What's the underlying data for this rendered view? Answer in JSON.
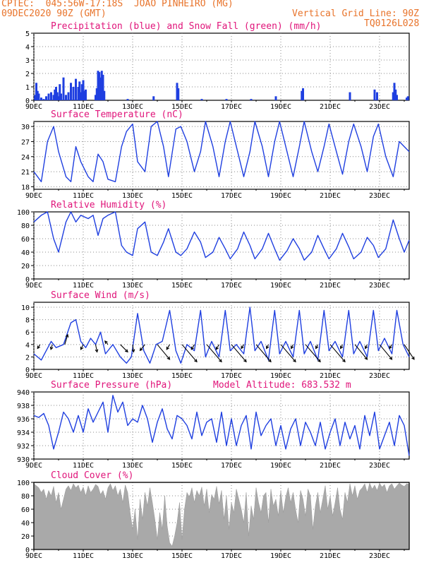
{
  "header": {
    "line1": "CPTEC:  045:56W-17:18S  JOAO PINHEIRO (MG)",
    "line2": "09DEC2020 90Z (GMT)",
    "grid_note": "Vertical Grid Line: 90Z",
    "code": "TQ0126L028"
  },
  "colors": {
    "header": "#e8732a",
    "title": "#e0147a",
    "series": "#1f3fe0",
    "snow": "#22b422",
    "wind_arrow": "#000000",
    "cloud": "#a9a9a9"
  },
  "chart_data": [
    {
      "id": "precip",
      "type": "bar",
      "title": "Precipitation (blue) and Snow Fall (green) (mm/h)",
      "x_labels": [
        "9DEC",
        "11DEC",
        "13DEC",
        "15DEC",
        "17DEC",
        "19DEC",
        "21DEC",
        "23DEC"
      ],
      "x_range_days": [
        9,
        24.2
      ],
      "ylim": [
        0,
        5
      ],
      "yticks": [
        0,
        1,
        2,
        3,
        4,
        5
      ],
      "grid": true,
      "series": [
        {
          "name": "Precipitation",
          "x": [
            9.05,
            9.1,
            9.15,
            9.2,
            9.3,
            9.4,
            9.5,
            9.6,
            9.7,
            9.8,
            9.85,
            9.9,
            9.95,
            10.0,
            10.05,
            10.1,
            10.2,
            10.3,
            10.4,
            10.5,
            10.6,
            10.7,
            10.8,
            10.85,
            10.9,
            10.95,
            11.0,
            11.05,
            11.1,
            11.5,
            11.55,
            11.6,
            11.65,
            11.7,
            11.75,
            11.8,
            11.85,
            12.8,
            13.85,
            14.8,
            14.85,
            15.8,
            16.8,
            17.8,
            18.8,
            19.85,
            19.9,
            21.8,
            22.8,
            22.9,
            23.55,
            23.6,
            23.65,
            23.7,
            24.1,
            24.15
          ],
          "values": [
            0.4,
            1.3,
            0.7,
            0.5,
            0.2,
            0.1,
            0.3,
            0.5,
            0.6,
            0.4,
            0.8,
            1.0,
            0.6,
            0.3,
            1.2,
            0.5,
            1.7,
            0.4,
            0.6,
            1.3,
            1.0,
            1.6,
            1.0,
            1.4,
            0.6,
            1.2,
            1.5,
            0.7,
            0.8,
            0.4,
            0.9,
            2.2,
            2.1,
            1.7,
            2.2,
            1.9,
            0.7,
            0.1,
            0.3,
            1.3,
            0.9,
            0.1,
            0.1,
            0.1,
            0.3,
            0.7,
            0.9,
            0.6,
            0.8,
            0.6,
            0.6,
            1.3,
            0.8,
            0.4,
            0.2,
            0.3
          ]
        },
        {
          "name": "Snow Fall",
          "x": [],
          "values": []
        }
      ]
    },
    {
      "id": "temp",
      "type": "line",
      "title": "Surface Temperature (nC)",
      "x_labels": [
        "9DEC",
        "11DEC",
        "13DEC",
        "15DEC",
        "17DEC",
        "19DEC",
        "21DEC",
        "23DEC"
      ],
      "x_range_days": [
        9,
        24.2
      ],
      "ylim": [
        17.5,
        31
      ],
      "yticks": [
        18,
        21,
        24,
        27,
        30
      ],
      "grid": true,
      "x": [
        9.0,
        9.3,
        9.55,
        9.8,
        10.0,
        10.3,
        10.5,
        10.7,
        10.9,
        11.2,
        11.4,
        11.6,
        11.8,
        12.0,
        12.3,
        12.55,
        12.75,
        13.0,
        13.2,
        13.5,
        13.75,
        14.0,
        14.25,
        14.45,
        14.75,
        14.95,
        15.2,
        15.5,
        15.75,
        15.95,
        16.25,
        16.5,
        16.75,
        16.95,
        17.25,
        17.5,
        17.75,
        17.95,
        18.25,
        18.5,
        18.75,
        18.95,
        19.25,
        19.5,
        19.75,
        19.95,
        20.25,
        20.5,
        20.75,
        20.95,
        21.25,
        21.5,
        21.75,
        21.95,
        22.25,
        22.5,
        22.75,
        22.95,
        23.25,
        23.55,
        23.8,
        24.0,
        24.2
      ],
      "values": [
        21,
        19,
        27,
        30,
        25,
        20,
        19,
        26,
        23,
        20,
        19,
        24.5,
        23,
        19.5,
        19,
        26,
        29,
        30.5,
        23,
        21,
        30,
        31,
        26,
        20,
        29.5,
        30,
        27,
        21,
        25,
        31,
        26,
        20,
        27,
        31,
        25,
        20,
        25,
        31,
        26,
        20,
        27,
        31,
        25,
        20,
        26,
        31,
        25,
        21,
        26,
        30.5,
        25,
        20.5,
        27,
        30.5,
        26,
        21,
        28,
        30.5,
        24,
        20,
        27,
        26,
        25
      ]
    },
    {
      "id": "rh",
      "type": "line",
      "title": "Relative Humidity (%)",
      "x_labels": [
        "9DEC",
        "11DEC",
        "13DEC",
        "15DEC",
        "17DEC",
        "19DEC",
        "21DEC",
        "23DEC"
      ],
      "x_range_days": [
        9,
        24.2
      ],
      "ylim": [
        0,
        100
      ],
      "yticks": [
        0,
        20,
        40,
        60,
        80,
        100
      ],
      "grid": true,
      "x": [
        9.0,
        9.3,
        9.55,
        9.8,
        10.0,
        10.3,
        10.5,
        10.7,
        10.9,
        11.2,
        11.4,
        11.6,
        11.8,
        12.0,
        12.3,
        12.55,
        12.75,
        13.0,
        13.2,
        13.5,
        13.75,
        14.0,
        14.25,
        14.45,
        14.75,
        14.95,
        15.2,
        15.5,
        15.75,
        15.95,
        16.25,
        16.5,
        16.75,
        16.95,
        17.25,
        17.5,
        17.75,
        17.95,
        18.25,
        18.5,
        18.75,
        18.95,
        19.25,
        19.5,
        19.75,
        19.95,
        20.25,
        20.5,
        20.75,
        20.95,
        21.25,
        21.5,
        21.75,
        21.95,
        22.25,
        22.5,
        22.75,
        22.95,
        23.25,
        23.55,
        23.8,
        24.0,
        24.2
      ],
      "values": [
        85,
        95,
        100,
        60,
        40,
        85,
        100,
        85,
        95,
        90,
        95,
        65,
        90,
        95,
        100,
        50,
        40,
        35,
        75,
        85,
        40,
        35,
        55,
        75,
        40,
        35,
        45,
        70,
        55,
        32,
        40,
        62,
        45,
        30,
        45,
        70,
        50,
        30,
        45,
        68,
        45,
        28,
        42,
        60,
        45,
        28,
        40,
        65,
        45,
        30,
        45,
        68,
        48,
        30,
        40,
        62,
        50,
        32,
        45,
        88,
        60,
        40,
        58
      ]
    },
    {
      "id": "wind",
      "type": "line",
      "title": "Surface Wind (m/s)",
      "x_labels": [
        "9DEC",
        "11DEC",
        "13DEC",
        "15DEC",
        "17DEC",
        "19DEC",
        "21DEC",
        "23DEC"
      ],
      "x_range_days": [
        9,
        24.2
      ],
      "ylim": [
        0,
        10.8
      ],
      "yticks": [
        0,
        2,
        4,
        6,
        8,
        10
      ],
      "grid": true,
      "x": [
        9.0,
        9.3,
        9.5,
        9.7,
        9.9,
        10.2,
        10.5,
        10.7,
        10.9,
        11.1,
        11.3,
        11.5,
        11.7,
        11.9,
        12.2,
        12.5,
        12.75,
        12.95,
        13.2,
        13.45,
        13.7,
        13.95,
        14.2,
        14.5,
        14.75,
        14.95,
        15.2,
        15.5,
        15.75,
        15.95,
        16.2,
        16.5,
        16.75,
        16.95,
        17.2,
        17.5,
        17.75,
        17.95,
        18.2,
        18.5,
        18.75,
        18.95,
        19.2,
        19.5,
        19.75,
        19.95,
        20.2,
        20.5,
        20.75,
        20.95,
        21.2,
        21.5,
        21.75,
        21.95,
        22.2,
        22.5,
        22.75,
        22.95,
        23.2,
        23.5,
        23.7,
        23.95,
        24.2
      ],
      "values": [
        2.5,
        1.5,
        3,
        4.5,
        3.5,
        4,
        7.5,
        8,
        4.5,
        3.5,
        5,
        4,
        6,
        2.5,
        4,
        2,
        1,
        2,
        9,
        3,
        1,
        4,
        4.5,
        9.5,
        3,
        1,
        4,
        3,
        9.5,
        2,
        4.5,
        2,
        9.5,
        3,
        4,
        2.5,
        10,
        3,
        4.5,
        1.5,
        9.5,
        2.5,
        4.5,
        2,
        9.5,
        2.5,
        4.5,
        1.5,
        9.5,
        3,
        4.5,
        2,
        9.5,
        2.5,
        4.5,
        2,
        9.5,
        3,
        5,
        2.5,
        9.5,
        4,
        2
      ],
      "arrows": {
        "x": [
          9.25,
          9.75,
          10.25,
          11.0,
          11.5,
          12.0,
          12.5,
          13.0,
          13.5,
          14.0,
          14.5,
          15.0,
          15.5,
          16.0,
          16.5,
          17.0,
          17.5,
          18.0,
          18.5,
          19.0,
          19.5,
          20.0,
          20.5,
          21.0,
          21.5,
          22.0,
          22.5,
          23.0,
          23.5,
          24.0
        ],
        "u": [
          -0.5,
          -0.3,
          0.6,
          -0.5,
          0.3,
          -0.6,
          1.5,
          0.2,
          -1.0,
          2.5,
          -0.6,
          3.0,
          -0.6,
          3.0,
          -0.6,
          3.0,
          -0.5,
          3.0,
          -0.4,
          3.0,
          -0.4,
          3.0,
          -0.4,
          3.0,
          -0.4,
          2.5,
          -0.4,
          2.5,
          -0.5,
          2.0
        ],
        "v": [
          0.8,
          1.0,
          -2.0,
          1.0,
          1.5,
          -0.7,
          1.5,
          1.5,
          1.2,
          3.0,
          1.0,
          3.5,
          1.0,
          3.5,
          1.0,
          3.5,
          0.8,
          3.5,
          0.8,
          3.5,
          0.8,
          3.5,
          0.8,
          3.5,
          0.8,
          3.0,
          0.8,
          3.0,
          0.8,
          3.0
        ]
      }
    },
    {
      "id": "pressure",
      "type": "line",
      "title": "Surface Pressure (hPa)",
      "annotation": "Model Altitude: 683.532 m",
      "x_labels": [
        "9DEC",
        "11DEC",
        "13DEC",
        "15DEC",
        "17DEC",
        "19DEC",
        "21DEC",
        "23DEC"
      ],
      "x_range_days": [
        9,
        24.2
      ],
      "ylim": [
        930,
        940
      ],
      "yticks": [
        930,
        932,
        934,
        936,
        938,
        940
      ],
      "grid": true,
      "x": [
        9.0,
        9.2,
        9.4,
        9.6,
        9.8,
        10.0,
        10.2,
        10.4,
        10.6,
        10.8,
        11.0,
        11.2,
        11.4,
        11.6,
        11.8,
        12.0,
        12.2,
        12.4,
        12.6,
        12.8,
        13.0,
        13.2,
        13.4,
        13.6,
        13.8,
        14.0,
        14.2,
        14.4,
        14.6,
        14.8,
        15.0,
        15.2,
        15.4,
        15.6,
        15.8,
        16.0,
        16.2,
        16.4,
        16.6,
        16.8,
        17.0,
        17.2,
        17.4,
        17.6,
        17.8,
        18.0,
        18.2,
        18.4,
        18.6,
        18.8,
        19.0,
        19.2,
        19.4,
        19.6,
        19.8,
        20.0,
        20.2,
        20.4,
        20.6,
        20.8,
        21.0,
        21.2,
        21.4,
        21.6,
        21.8,
        22.0,
        22.2,
        22.4,
        22.6,
        22.8,
        23.0,
        23.2,
        23.4,
        23.6,
        23.8,
        24.0,
        24.2
      ],
      "values": [
        936.5,
        936.2,
        936.8,
        935,
        931.5,
        934,
        937,
        936,
        934,
        936.5,
        934,
        937.5,
        935.5,
        937,
        938.5,
        934,
        939.5,
        937,
        938.5,
        935,
        936,
        935.5,
        938,
        936,
        932.5,
        935.5,
        937.5,
        934.5,
        933,
        936.5,
        936,
        935,
        933,
        937,
        933.5,
        935.5,
        936,
        932.5,
        937,
        932,
        936,
        932,
        935,
        936.5,
        931.5,
        937,
        933.5,
        935,
        936,
        932,
        935,
        931.5,
        934.5,
        936,
        932,
        935.5,
        934,
        932,
        935.5,
        931.5,
        934,
        936,
        932,
        935.5,
        933,
        935,
        931.5,
        936.5,
        933.5,
        937,
        931.5,
        933.5,
        935.5,
        932,
        936.5,
        935,
        930.5
      ]
    },
    {
      "id": "cloud",
      "type": "area",
      "title": "Cloud Cover (%)",
      "x_labels": [
        "9DEC",
        "11DEC",
        "13DEC",
        "15DEC",
        "17DEC",
        "19DEC",
        "21DEC",
        "23DEC"
      ],
      "x_range_days": [
        9,
        24.2
      ],
      "ylim": [
        0,
        100
      ],
      "yticks": [
        0,
        20,
        40,
        60,
        80,
        100
      ],
      "grid": true,
      "x": [
        9.0,
        9.1,
        9.2,
        9.3,
        9.4,
        9.5,
        9.6,
        9.7,
        9.8,
        9.9,
        10.0,
        10.1,
        10.2,
        10.3,
        10.4,
        10.5,
        10.6,
        10.7,
        10.8,
        10.9,
        11.0,
        11.1,
        11.2,
        11.3,
        11.4,
        11.5,
        11.6,
        11.7,
        11.8,
        11.9,
        12.0,
        12.1,
        12.2,
        12.3,
        12.4,
        12.5,
        12.6,
        12.7,
        12.8,
        12.9,
        13.0,
        13.1,
        13.2,
        13.3,
        13.4,
        13.5,
        13.6,
        13.7,
        13.8,
        13.9,
        14.0,
        14.1,
        14.2,
        14.3,
        14.4,
        14.5,
        14.6,
        14.7,
        14.8,
        14.9,
        15.0,
        15.1,
        15.2,
        15.3,
        15.4,
        15.5,
        15.6,
        15.7,
        15.8,
        15.9,
        16.0,
        16.1,
        16.2,
        16.3,
        16.4,
        16.5,
        16.6,
        16.7,
        16.8,
        16.9,
        17.0,
        17.1,
        17.2,
        17.3,
        17.4,
        17.5,
        17.6,
        17.7,
        17.8,
        17.9,
        18.0,
        18.1,
        18.2,
        18.3,
        18.4,
        18.5,
        18.6,
        18.7,
        18.8,
        18.9,
        19.0,
        19.1,
        19.2,
        19.3,
        19.4,
        19.5,
        19.6,
        19.7,
        19.8,
        19.9,
        20.0,
        20.1,
        20.2,
        20.3,
        20.4,
        20.5,
        20.6,
        20.7,
        20.8,
        20.9,
        21.0,
        21.1,
        21.2,
        21.3,
        21.4,
        21.5,
        21.6,
        21.7,
        21.8,
        21.9,
        22.0,
        22.1,
        22.2,
        22.3,
        22.4,
        22.5,
        22.6,
        22.7,
        22.8,
        22.9,
        23.0,
        23.1,
        23.2,
        23.3,
        23.4,
        23.5,
        23.6,
        23.7,
        23.8,
        23.9,
        24.0,
        24.1,
        24.2
      ],
      "values": [
        98,
        95,
        92,
        85,
        90,
        75,
        88,
        80,
        94,
        70,
        85,
        60,
        75,
        90,
        95,
        88,
        98,
        92,
        96,
        85,
        93,
        80,
        95,
        85,
        90,
        97,
        94,
        82,
        88,
        75,
        92,
        98,
        88,
        95,
        80,
        90,
        70,
        96,
        85,
        55,
        30,
        60,
        15,
        75,
        45,
        85,
        65,
        92,
        70,
        45,
        15,
        55,
        30,
        80,
        35,
        10,
        5,
        20,
        40,
        70,
        15,
        60,
        85,
        78,
        92,
        70,
        88,
        80,
        93,
        65,
        90,
        55,
        82,
        75,
        94,
        68,
        88,
        45,
        80,
        30,
        70,
        55,
        90,
        75,
        60,
        40,
        85,
        20,
        65,
        45,
        92,
        70,
        55,
        80,
        85,
        40,
        90,
        65,
        75,
        50,
        88,
        55,
        78,
        92,
        70,
        85,
        60,
        40,
        88,
        75,
        50,
        90,
        80,
        30,
        65,
        85,
        55,
        75,
        95,
        60,
        80,
        50,
        70,
        92,
        60,
        45,
        85,
        70,
        98,
        80,
        95,
        75,
        88,
        92,
        98,
        85,
        99,
        90,
        96,
        88,
        99,
        93,
        97,
        85,
        95,
        98,
        90,
        95,
        99,
        96,
        94,
        98,
        97
      ]
    }
  ]
}
